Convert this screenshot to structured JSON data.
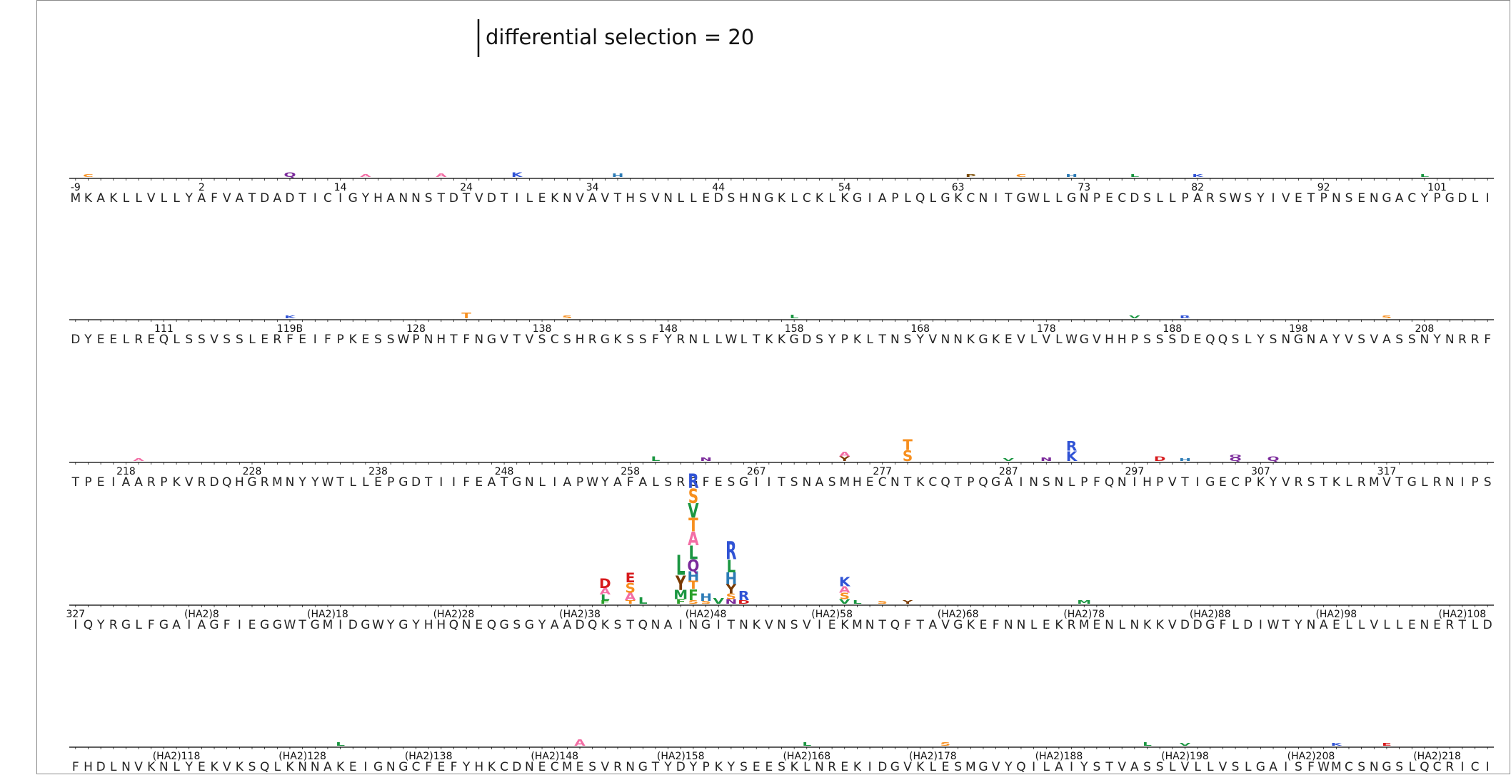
{
  "chart_data": {
    "type": "logo",
    "scale_bar": {
      "label": "differential selection = 20",
      "value": 20
    },
    "colors": {
      "A": "#f36ea5",
      "C": "#f78f1e",
      "D": "#d7191c",
      "E": "#d7191c",
      "F": "#2aa02a",
      "G": "#7a7a7a",
      "H": "#2c7bb6",
      "I": "#1a9641",
      "K": "#3053d5",
      "L": "#1a9641",
      "M": "#1a9641",
      "N": "#7b2a9b",
      "P": "#7a4a00",
      "Q": "#7b2a9b",
      "R": "#3053d5",
      "S": "#f78f1e",
      "T": "#f78f1e",
      "V": "#1a9641",
      "W": "#2aa02a",
      "Y": "#7a3a00"
    },
    "rows": [
      {
        "sequence": "MKAKLLVLLYAFVATDADTICIGYHANNSTDTVDTILEKNVAVTHSVNLLEDSHNGKLCKLKGIAPLQLGKCNITGWLLGNPECDSLLPARSWSYIVETPNSENGACYPGDLI",
        "ticks": [
          {
            "site": 0,
            "label": "-9"
          },
          {
            "site": 10,
            "label": "2"
          },
          {
            "site": 21,
            "label": "14"
          },
          {
            "site": 31,
            "label": "24"
          },
          {
            "site": 41,
            "label": "34"
          },
          {
            "site": 51,
            "label": "44"
          },
          {
            "site": 61,
            "label": "54"
          },
          {
            "site": 70,
            "label": "63"
          },
          {
            "site": 80,
            "label": "73"
          },
          {
            "site": 89,
            "label": "82"
          },
          {
            "site": 99,
            "label": "92"
          },
          {
            "site": 108,
            "label": "101"
          }
        ],
        "stacks": [
          {
            "site": 1,
            "letters": [
              {
                "aa": "C",
                "h": 0.3
              }
            ]
          },
          {
            "site": 17,
            "letters": [
              {
                "aa": "Q",
                "h": 0.5
              }
            ]
          },
          {
            "site": 23,
            "letters": [
              {
                "aa": "A",
                "h": 0.3
              }
            ]
          },
          {
            "site": 29,
            "letters": [
              {
                "aa": "A",
                "h": 0.4
              }
            ]
          },
          {
            "site": 35,
            "letters": [
              {
                "aa": "K",
                "h": 0.5
              }
            ]
          },
          {
            "site": 43,
            "letters": [
              {
                "aa": "H",
                "h": 0.4
              }
            ]
          },
          {
            "site": 71,
            "letters": [
              {
                "aa": "P",
                "h": 0.3
              }
            ]
          },
          {
            "site": 75,
            "letters": [
              {
                "aa": "C",
                "h": 0.3
              }
            ]
          },
          {
            "site": 79,
            "letters": [
              {
                "aa": "H",
                "h": 0.3
              }
            ]
          },
          {
            "site": 84,
            "letters": [
              {
                "aa": "L",
                "h": 0.3
              }
            ]
          },
          {
            "site": 89,
            "letters": [
              {
                "aa": "K",
                "h": 0.3
              }
            ]
          },
          {
            "site": 107,
            "letters": [
              {
                "aa": "L",
                "h": 0.3
              }
            ]
          }
        ]
      },
      {
        "sequence": "DYEELREQLSSVSSLERFEIFPKESSWPNHTFNGVTVSCSHRGKSSFYRNLLWLTKKGDSYPKLTNSYVNNKGKEVLVLWGVHHPSSSDEQQSLYSNGNAYVSVASSNYNRRF",
        "ticks": [
          {
            "site": 7,
            "label": "111"
          },
          {
            "site": 17,
            "label": "119B"
          },
          {
            "site": 27,
            "label": "128"
          },
          {
            "site": 37,
            "label": "138"
          },
          {
            "site": 47,
            "label": "148"
          },
          {
            "site": 57,
            "label": "158"
          },
          {
            "site": 67,
            "label": "168"
          },
          {
            "site": 77,
            "label": "178"
          },
          {
            "site": 87,
            "label": "188"
          },
          {
            "site": 97,
            "label": "198"
          },
          {
            "site": 107,
            "label": "208"
          }
        ],
        "stacks": [
          {
            "site": 17,
            "letters": [
              {
                "aa": "K",
                "h": 0.3
              }
            ]
          },
          {
            "site": 31,
            "letters": [
              {
                "aa": "T",
                "h": 0.6
              }
            ]
          },
          {
            "site": 39,
            "letters": [
              {
                "aa": "S",
                "h": 0.3
              }
            ]
          },
          {
            "site": 57,
            "letters": [
              {
                "aa": "L",
                "h": 0.4
              }
            ]
          },
          {
            "site": 84,
            "letters": [
              {
                "aa": "V",
                "h": 0.3
              }
            ]
          },
          {
            "site": 88,
            "letters": [
              {
                "aa": "R",
                "h": 0.3
              }
            ]
          },
          {
            "site": 104,
            "letters": [
              {
                "aa": "S",
                "h": 0.3
              }
            ]
          }
        ]
      },
      {
        "sequence": "TPEIAARPKVRDQHGRMNYYWTLLEPGDTIIFEATGNLIAPWYAFALSRGFESGIITSNASMHECNTKCQTPQGAINSNLPFQNIHPVTIGECPKYVRSTKLRMVTGLRNIPS",
        "ticks": [
          {
            "site": 4,
            "label": "218"
          },
          {
            "site": 14,
            "label": "228"
          },
          {
            "site": 24,
            "label": "238"
          },
          {
            "site": 34,
            "label": "248"
          },
          {
            "site": 44,
            "label": "258"
          },
          {
            "site": 54,
            "label": "267"
          },
          {
            "site": 64,
            "label": "277"
          },
          {
            "site": 74,
            "label": "287"
          },
          {
            "site": 84,
            "label": "297"
          },
          {
            "site": 94,
            "label": "307"
          },
          {
            "site": 104,
            "label": "317"
          }
        ],
        "stacks": [
          {
            "site": 5,
            "letters": [
              {
                "aa": "A",
                "h": 0.3
              }
            ]
          },
          {
            "site": 46,
            "letters": [
              {
                "aa": "L",
                "h": 0.5
              }
            ]
          },
          {
            "site": 50,
            "letters": [
              {
                "aa": "N",
                "h": 0.4
              }
            ]
          },
          {
            "site": 61,
            "letters": [
              {
                "aa": "Y",
                "h": 0.5
              },
              {
                "aa": "A",
                "h": 0.5
              }
            ]
          },
          {
            "site": 66,
            "letters": [
              {
                "aa": "S",
                "h": 1.2
              },
              {
                "aa": "T",
                "h": 1.2
              }
            ]
          },
          {
            "site": 74,
            "letters": [
              {
                "aa": "V",
                "h": 0.3
              }
            ]
          },
          {
            "site": 77,
            "letters": [
              {
                "aa": "N",
                "h": 0.4
              }
            ]
          },
          {
            "site": 79,
            "letters": [
              {
                "aa": "K",
                "h": 1.1
              },
              {
                "aa": "R",
                "h": 1.1
              }
            ]
          },
          {
            "site": 86,
            "letters": [
              {
                "aa": "D",
                "h": 0.5
              }
            ]
          },
          {
            "site": 88,
            "letters": [
              {
                "aa": "H",
                "h": 0.3
              }
            ]
          },
          {
            "site": 92,
            "letters": [
              {
                "aa": "Q",
                "h": 0.4
              },
              {
                "aa": "Q",
                "h": 0.3
              }
            ]
          },
          {
            "site": 95,
            "letters": [
              {
                "aa": "Q",
                "h": 0.5
              }
            ]
          }
        ]
      },
      {
        "sequence": "IQYRGLFGAIAGFIEGGWTGMIDGWYGYHHQNEQGSGYAADQKSTQNAINGITNKVNSVIEKMNTQFTAVGKEFNNLEKRMENLNKKVDDGFLDIWTYNAELLVLLENERTLD",
        "ticks": [
          {
            "site": 0,
            "label": "327"
          },
          {
            "site": 10,
            "label": "(HA2)8"
          },
          {
            "site": 20,
            "label": "(HA2)18"
          },
          {
            "site": 30,
            "label": "(HA2)28"
          },
          {
            "site": 40,
            "label": "(HA2)38"
          },
          {
            "site": 50,
            "label": "(HA2)48"
          },
          {
            "site": 60,
            "label": "(HA2)58"
          },
          {
            "site": 70,
            "label": "(HA2)68"
          },
          {
            "site": 80,
            "label": "(HA2)78"
          },
          {
            "site": 90,
            "label": "(HA2)88"
          },
          {
            "site": 100,
            "label": "(HA2)98"
          },
          {
            "site": 110,
            "label": "(HA2)108"
          }
        ],
        "stacks": [
          {
            "site": 42,
            "letters": [
              {
                "aa": "F",
                "h": 0.4
              },
              {
                "aa": "L",
                "h": 0.6
              },
              {
                "aa": "A",
                "h": 0.7
              },
              {
                "aa": "D",
                "h": 1.1
              }
            ]
          },
          {
            "site": 44,
            "letters": [
              {
                "aa": "T",
                "h": 0.4
              },
              {
                "aa": "A",
                "h": 0.8
              },
              {
                "aa": "S",
                "h": 1.1
              },
              {
                "aa": "E",
                "h": 1.1
              }
            ]
          },
          {
            "site": 45,
            "letters": [
              {
                "aa": "L",
                "h": 0.7
              }
            ]
          },
          {
            "site": 48,
            "letters": [
              {
                "aa": "F",
                "h": 0.5
              },
              {
                "aa": "M",
                "h": 1.0
              },
              {
                "aa": "Y",
                "h": 1.6
              },
              {
                "aa": "L",
                "h": 2.2
              }
            ]
          },
          {
            "site": 49,
            "letters": [
              {
                "aa": "S",
                "h": 0.4
              },
              {
                "aa": "F",
                "h": 1.2
              },
              {
                "aa": "T",
                "h": 0.9
              },
              {
                "aa": "H",
                "h": 1.0
              },
              {
                "aa": "Q",
                "h": 1.3
              },
              {
                "aa": "L",
                "h": 1.5
              },
              {
                "aa": "A",
                "h": 1.5
              },
              {
                "aa": "T",
                "h": 1.5
              },
              {
                "aa": "V",
                "h": 1.6
              },
              {
                "aa": "S",
                "h": 1.6
              },
              {
                "aa": "R",
                "h": 1.6
              }
            ]
          },
          {
            "site": 50,
            "letters": [
              {
                "aa": "S",
                "h": 0.3
              },
              {
                "aa": "H",
                "h": 0.8
              }
            ]
          },
          {
            "site": 51,
            "letters": [
              {
                "aa": "V",
                "h": 0.6
              }
            ]
          },
          {
            "site": 52,
            "letters": [
              {
                "aa": "N",
                "h": 0.5
              },
              {
                "aa": "S",
                "h": 0.6
              },
              {
                "aa": "Y",
                "h": 1.0
              },
              {
                "aa": "H",
                "h": 1.3
              },
              {
                "aa": "L",
                "h": 1.4
              },
              {
                "aa": "R",
                "h": 2.0
              }
            ]
          },
          {
            "site": 53,
            "letters": [
              {
                "aa": "D",
                "h": 0.4
              },
              {
                "aa": "R",
                "h": 1.0
              }
            ]
          },
          {
            "site": 61,
            "letters": [
              {
                "aa": "V",
                "h": 0.5
              },
              {
                "aa": "S",
                "h": 0.7
              },
              {
                "aa": "A",
                "h": 0.7
              },
              {
                "aa": "K",
                "h": 1.0
              }
            ]
          },
          {
            "site": 62,
            "letters": [
              {
                "aa": "L",
                "h": 0.4
              }
            ]
          },
          {
            "site": 64,
            "letters": [
              {
                "aa": "S",
                "h": 0.3
              }
            ]
          },
          {
            "site": 66,
            "letters": [
              {
                "aa": "Y",
                "h": 0.4
              }
            ]
          },
          {
            "site": 80,
            "letters": [
              {
                "aa": "M",
                "h": 0.4
              }
            ]
          }
        ]
      },
      {
        "sequence": "FHDLNVKNLYEKVKSQLKNNAKEIGNGCFEFYHKCDNECMESVRNGTYDYPKYSEESKLNREKIDGVKLESMGVYQILAIYSTVASSLVLLVSLGAISFWMCSNGSLQCRICI",
        "ticks": [
          {
            "site": 8,
            "label": "(HA2)118"
          },
          {
            "site": 18,
            "label": "(HA2)128"
          },
          {
            "site": 28,
            "label": "(HA2)138"
          },
          {
            "site": 38,
            "label": "(HA2)148"
          },
          {
            "site": 48,
            "label": "(HA2)158"
          },
          {
            "site": 58,
            "label": "(HA2)168"
          },
          {
            "site": 68,
            "label": "(HA2)178"
          },
          {
            "site": 78,
            "label": "(HA2)188"
          },
          {
            "site": 88,
            "label": "(HA2)198"
          },
          {
            "site": 98,
            "label": "(HA2)208"
          },
          {
            "site": 108,
            "label": "(HA2)218"
          }
        ],
        "stacks": [
          {
            "site": 21,
            "letters": [
              {
                "aa": "L",
                "h": 0.4
              }
            ]
          },
          {
            "site": 40,
            "letters": [
              {
                "aa": "A",
                "h": 0.7
              }
            ]
          },
          {
            "site": 58,
            "letters": [
              {
                "aa": "L",
                "h": 0.4
              }
            ]
          },
          {
            "site": 69,
            "letters": [
              {
                "aa": "S",
                "h": 0.4
              }
            ]
          },
          {
            "site": 85,
            "letters": [
              {
                "aa": "L",
                "h": 0.4
              }
            ]
          },
          {
            "site": 88,
            "letters": [
              {
                "aa": "V",
                "h": 0.3
              }
            ]
          },
          {
            "site": 100,
            "letters": [
              {
                "aa": "K",
                "h": 0.3
              }
            ]
          },
          {
            "site": 104,
            "letters": [
              {
                "aa": "E",
                "h": 0.3
              }
            ]
          }
        ]
      }
    ]
  }
}
